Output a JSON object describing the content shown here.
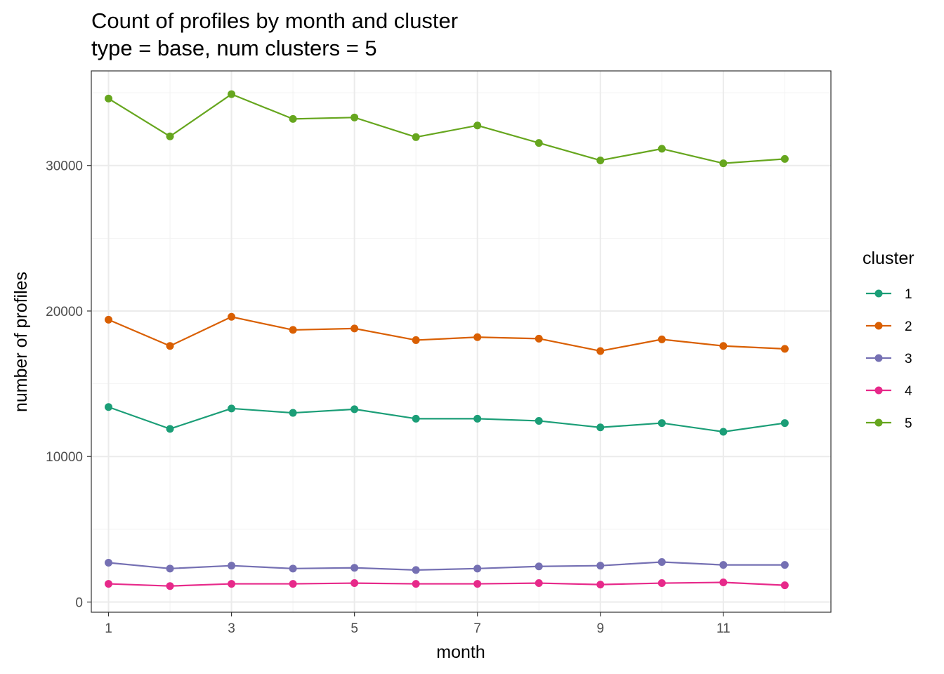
{
  "chart_data": {
    "type": "line",
    "title": "Count of profiles by month and cluster",
    "subtitle": "type = base, num clusters = 5",
    "xlabel": "month",
    "ylabel": "number of profiles",
    "x": [
      1,
      2,
      3,
      4,
      5,
      6,
      7,
      8,
      9,
      10,
      11,
      12
    ],
    "xlim": [
      0.72,
      12.75
    ],
    "ylim": [
      -700,
      36500
    ],
    "x_ticks": [
      1,
      3,
      5,
      7,
      9,
      11
    ],
    "x_tick_labels": [
      "1",
      "3",
      "5",
      "7",
      "9",
      "11"
    ],
    "y_ticks": [
      0,
      10000,
      20000,
      30000
    ],
    "y_tick_labels": [
      "0",
      "10000",
      "20000",
      "30000"
    ],
    "grid": true,
    "legend": {
      "title": "cluster",
      "position": "right"
    },
    "series": [
      {
        "name": "1",
        "color": "#1b9e77",
        "values": [
          13400,
          11900,
          13300,
          13000,
          13250,
          12600,
          12600,
          12450,
          12000,
          12300,
          11700,
          12300
        ]
      },
      {
        "name": "2",
        "color": "#d95f02",
        "values": [
          19400,
          17600,
          19600,
          18700,
          18800,
          18000,
          18200,
          18100,
          17250,
          18050,
          17600,
          17400
        ]
      },
      {
        "name": "3",
        "color": "#7570b3",
        "values": [
          2700,
          2300,
          2500,
          2300,
          2350,
          2200,
          2300,
          2450,
          2500,
          2750,
          2550,
          2550
        ]
      },
      {
        "name": "4",
        "color": "#e7298a",
        "values": [
          1250,
          1100,
          1250,
          1250,
          1300,
          1250,
          1250,
          1300,
          1200,
          1300,
          1350,
          1150
        ]
      },
      {
        "name": "5",
        "color": "#66a61e",
        "values": [
          34600,
          32000,
          34900,
          33200,
          33300,
          31950,
          32750,
          31550,
          30350,
          31150,
          30150,
          30450
        ]
      }
    ]
  }
}
